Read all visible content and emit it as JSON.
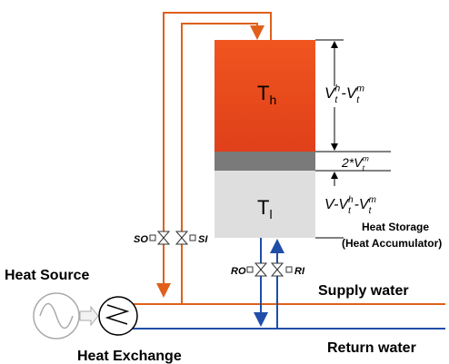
{
  "tank": {
    "hot_label": {
      "base": "T",
      "sub": "h"
    },
    "cold_label": {
      "base": "T",
      "sub": "l"
    }
  },
  "dimensions": [
    [
      {
        "base": "V",
        "sub": "t",
        "sup": "h"
      },
      {
        "base": "-V",
        "sub": "t",
        "sup": "m"
      }
    ],
    [
      {
        "base": "2*V",
        "sub": "t",
        "sup": "m"
      }
    ],
    [
      {
        "base": "V-V",
        "sub": "t",
        "sup": "h"
      },
      {
        "base": "-V",
        "sub": "t",
        "sup": "m"
      }
    ]
  ],
  "storage_title": "Heat Storage",
  "storage_subtitle": "(Heat Accumulator)",
  "valves": [
    "SO",
    "SI",
    "RO",
    "RI"
  ],
  "labels": {
    "heat_source": "Heat Source",
    "heat_exchange": "Heat Exchange",
    "supply": "Supply water",
    "return": "Return water"
  }
}
